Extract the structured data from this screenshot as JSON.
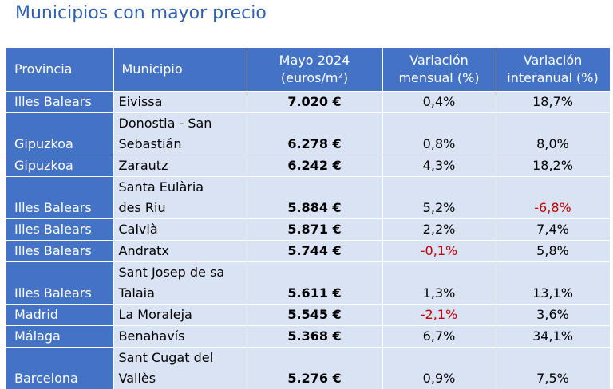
{
  "title": "Municipios con mayor precio",
  "headers": {
    "provincia": "Provincia",
    "municipio": "Municipio",
    "precio_l1": "Mayo 2024",
    "precio_l2": "(euros/m²)",
    "mensual_l1": "Variación",
    "mensual_l2": "mensual (%)",
    "interanual_l1": "Variación",
    "interanual_l2": "interanual (%)"
  },
  "rows": [
    {
      "provincia": "Illes Balears",
      "municipio_l1": "Eivissa",
      "municipio_l2": "",
      "precio": "7.020 €",
      "mensual": "0,4%",
      "interanual": "18,7%"
    },
    {
      "provincia": "Gipuzkoa",
      "municipio_l1": "Donostia - San",
      "municipio_l2": "Sebastián",
      "precio": "6.278 €",
      "mensual": "0,8%",
      "interanual": "8,0%"
    },
    {
      "provincia": "Gipuzkoa",
      "municipio_l1": "Zarautz",
      "municipio_l2": "",
      "precio": "6.242 €",
      "mensual": "4,3%",
      "interanual": "18,2%"
    },
    {
      "provincia": "Illes Balears",
      "municipio_l1": "Santa Eulària",
      "municipio_l2": "des Riu",
      "precio": "5.884 €",
      "mensual": "5,2%",
      "interanual": "-6,8%"
    },
    {
      "provincia": "Illes Balears",
      "municipio_l1": "Calvià",
      "municipio_l2": "",
      "precio": "5.871 €",
      "mensual": "2,2%",
      "interanual": "7,4%"
    },
    {
      "provincia": "Illes Balears",
      "municipio_l1": "Andratx",
      "municipio_l2": "",
      "precio": "5.744 €",
      "mensual": "-0,1%",
      "interanual": "5,8%"
    },
    {
      "provincia": "Illes Balears",
      "municipio_l1": "Sant Josep de sa",
      "municipio_l2": "Talaia",
      "precio": "5.611 €",
      "mensual": "1,3%",
      "interanual": "13,1%"
    },
    {
      "provincia": "Madrid",
      "municipio_l1": "La Moraleja",
      "municipio_l2": "",
      "precio": "5.545 €",
      "mensual": "-2,1%",
      "interanual": "3,6%"
    },
    {
      "provincia": "Málaga",
      "municipio_l1": "Benahavís",
      "municipio_l2": "",
      "precio": "5.368 €",
      "mensual": "6,7%",
      "interanual": "34,1%"
    },
    {
      "provincia": "Barcelona",
      "municipio_l1": "Sant Cugat del",
      "municipio_l2": "Vallès",
      "precio": "5.276 €",
      "mensual": "0,9%",
      "interanual": "7,5%"
    }
  ],
  "colors": {
    "header_bg": "#4472c4",
    "row_bg": "#dae3f3",
    "negative": "#c00000",
    "title": "#2f5fb0"
  }
}
